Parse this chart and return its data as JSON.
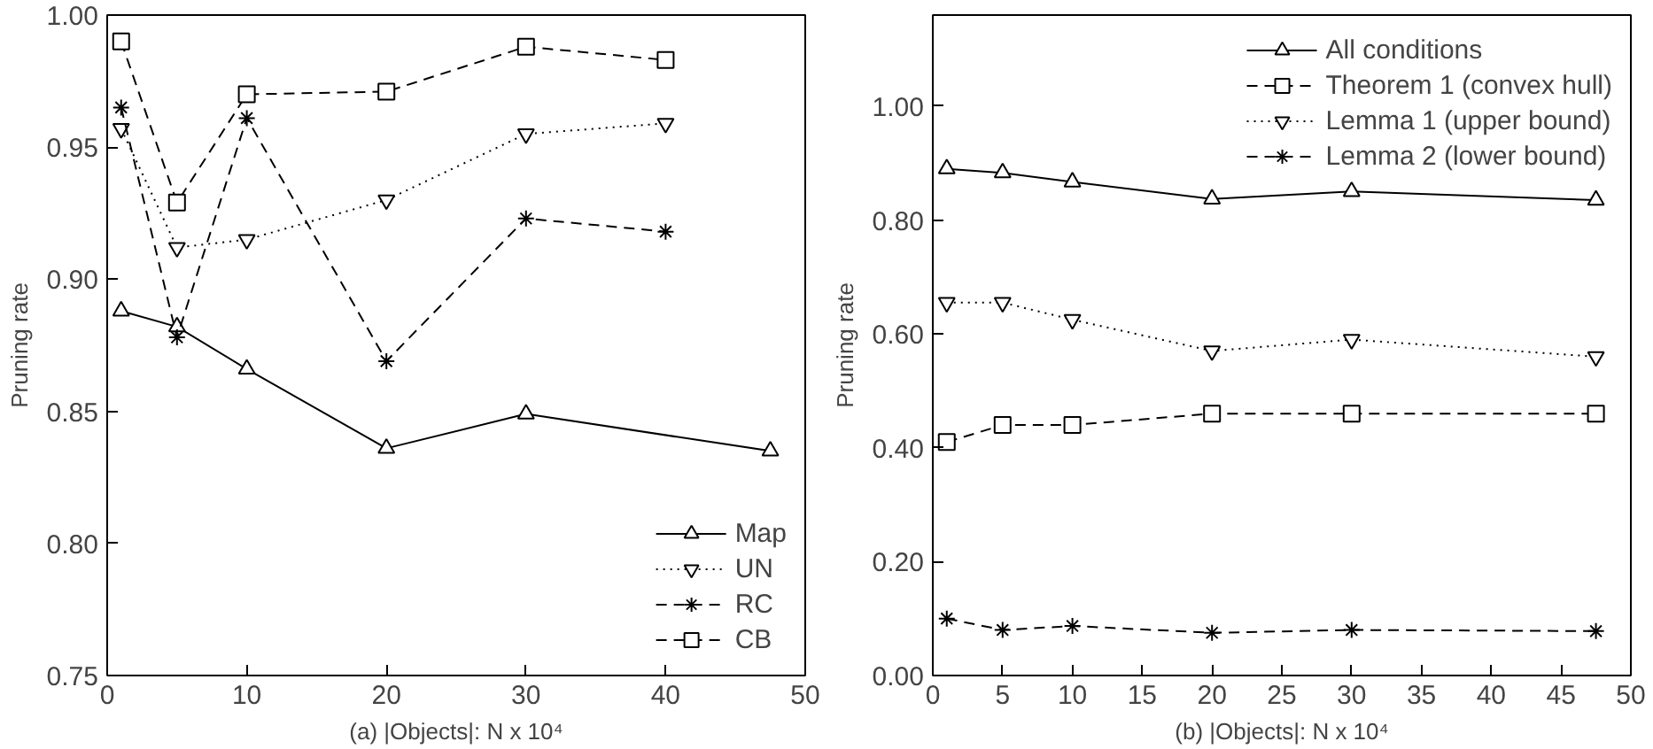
{
  "chart_data": [
    {
      "type": "line",
      "xlabel": "(a) |Objects|: N x 10⁴",
      "ylabel": "Pruning rate",
      "xlim": [
        0,
        50
      ],
      "ylim": [
        0.75,
        1.0
      ],
      "xticks": [
        0,
        10,
        20,
        30,
        40,
        50
      ],
      "yticks": [
        {
          "value": 0.75,
          "label": "0.75"
        },
        {
          "value": 0.8,
          "label": "0.80"
        },
        {
          "value": 0.85,
          "label": "0.85"
        },
        {
          "value": 0.9,
          "label": "0.90"
        },
        {
          "value": 0.95,
          "label": "0.95"
        },
        {
          "value": 1.0,
          "label": "1.00"
        }
      ],
      "grid": false,
      "legend": "bottom right",
      "series": [
        {
          "name": "Map",
          "color": "#000000",
          "marker": "triangle",
          "line_style": "solid",
          "x": [
            1,
            5,
            10,
            20,
            30,
            47.5
          ],
          "values": [
            0.888,
            0.882,
            0.866,
            0.836,
            0.849,
            0.835
          ]
        },
        {
          "name": "UN",
          "color": "#000000",
          "marker": "triangle_down",
          "line_style": "dotted",
          "x": [
            1,
            5,
            10,
            20,
            30,
            40
          ],
          "values": [
            0.957,
            0.912,
            0.915,
            0.93,
            0.955,
            0.959
          ]
        },
        {
          "name": "RC",
          "color": "#000000",
          "marker": "cross",
          "line_style": "dashed",
          "x": [
            1,
            5,
            10,
            20,
            30,
            40
          ],
          "values": [
            0.965,
            0.878,
            0.961,
            0.869,
            0.923,
            0.918
          ]
        },
        {
          "name": "CB",
          "color": "#000000",
          "marker": "square",
          "line_style": "dashed",
          "x": [
            1,
            5,
            10,
            20,
            30,
            40
          ],
          "values": [
            0.99,
            0.929,
            0.97,
            0.971,
            0.988,
            0.983
          ]
        }
      ]
    },
    {
      "type": "line",
      "xlabel": "(b) |Objects|: N x 10⁴",
      "ylabel": "Pruning rate",
      "xlim": [
        0,
        50
      ],
      "ylim": [
        0,
        1.16
      ],
      "xticks": [
        0,
        5,
        10,
        15,
        20,
        25,
        30,
        35,
        40,
        45,
        50
      ],
      "yticks": [
        {
          "value": 0,
          "label": "0.00"
        },
        {
          "value": 0.2,
          "label": "0.20"
        },
        {
          "value": 0.4,
          "label": "0.40"
        },
        {
          "value": 0.6,
          "label": "0.60"
        },
        {
          "value": 0.8,
          "label": "0.80"
        },
        {
          "value": 1.0,
          "label": "1.00"
        }
      ],
      "grid": false,
      "legend": "top right",
      "series": [
        {
          "name": "All conditions",
          "color": "#000000",
          "marker": "triangle",
          "line_style": "solid",
          "x": [
            1,
            5,
            10,
            20,
            30,
            47.5
          ],
          "values": [
            0.89,
            0.883,
            0.867,
            0.837,
            0.85,
            0.835
          ]
        },
        {
          "name": "Theorem 1 (convex hull)",
          "color": "#000000",
          "marker": "square",
          "line_style": "dashed",
          "x": [
            1,
            5,
            10,
            20,
            30,
            47.5
          ],
          "values": [
            0.41,
            0.44,
            0.44,
            0.46,
            0.46,
            0.46
          ]
        },
        {
          "name": "Lemma 1 (upper bound)",
          "color": "#000000",
          "marker": "triangle_down",
          "line_style": "dotted",
          "x": [
            1,
            5,
            10,
            20,
            30,
            47.5
          ],
          "values": [
            0.655,
            0.655,
            0.625,
            0.57,
            0.59,
            0.56
          ]
        },
        {
          "name": "Lemma 2 (lower bound)",
          "color": "#000000",
          "marker": "cross",
          "line_style": "dashed",
          "x": [
            1,
            5,
            10,
            20,
            30,
            47.5
          ],
          "values": [
            0.1,
            0.08,
            0.087,
            0.075,
            0.08,
            0.078
          ]
        }
      ]
    }
  ]
}
